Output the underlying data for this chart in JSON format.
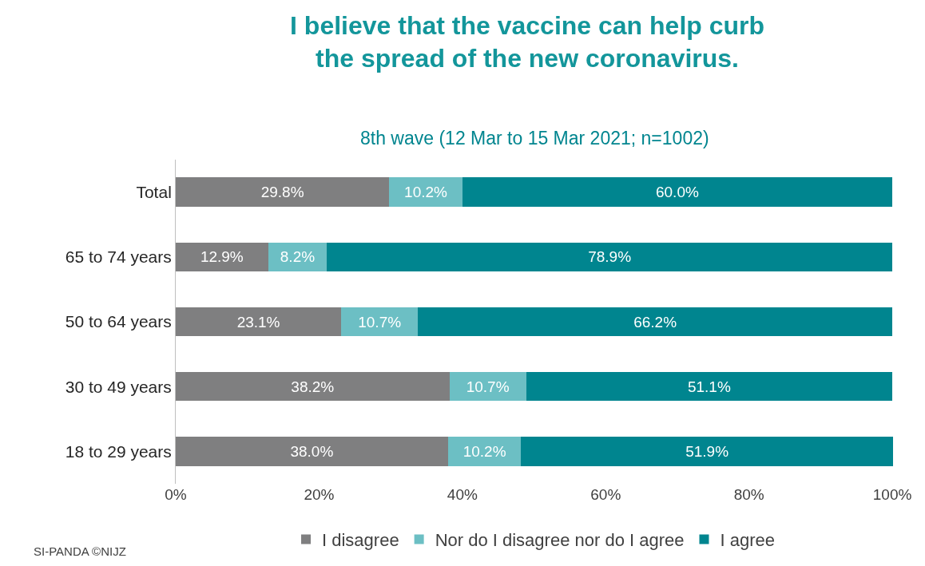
{
  "chart_data": {
    "type": "bar",
    "orientation": "horizontal",
    "stacked": true,
    "title": "I believe that the vaccine can help curb the spread of the new coronavirus.",
    "subtitle": "8th wave (12 Mar to 15 Mar 2021; n=1002)",
    "categories": [
      "Total",
      "65 to 74 years",
      "50 to 64 years",
      "30 to 49 years",
      "18 to 29 years"
    ],
    "series": [
      {
        "name": "I disagree",
        "color": "#7f7f80",
        "values": [
          29.8,
          12.9,
          23.1,
          38.2,
          38.0
        ],
        "value_labels": [
          "29.8%",
          "12.9%",
          "23.1%",
          "38.2%",
          "38.0%"
        ]
      },
      {
        "name": "Nor do I disagree nor do I agree",
        "color": "#6cbfc4",
        "values": [
          10.2,
          8.2,
          10.7,
          10.7,
          10.2
        ],
        "value_labels": [
          "10.2%",
          "8.2%",
          "10.7%",
          "10.7%",
          "10.2%"
        ]
      },
      {
        "name": "I agree",
        "color": "#00858f",
        "values": [
          60.0,
          78.9,
          66.2,
          51.1,
          51.9
        ],
        "value_labels": [
          "60.0%",
          "78.9%",
          "66.2%",
          "51.1%",
          "51.9%"
        ]
      }
    ],
    "xlim": [
      0,
      100.1
    ],
    "xticks": [
      {
        "value": 0,
        "label": "0%"
      },
      {
        "value": 20,
        "label": "20%"
      },
      {
        "value": 40,
        "label": "40%"
      },
      {
        "value": 60,
        "label": "60%"
      },
      {
        "value": 80,
        "label": "80%"
      },
      {
        "value": 100,
        "label": "100%"
      }
    ],
    "grid": false,
    "legend": "bottom",
    "annotations": [
      "SI-PANDA ©NIJZ"
    ]
  }
}
